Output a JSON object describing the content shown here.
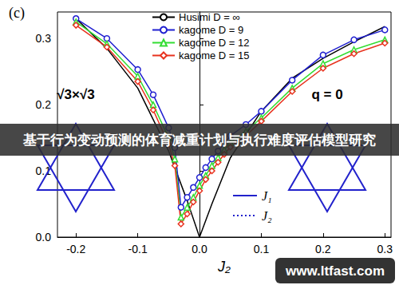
{
  "chart_data": {
    "type": "line",
    "title": "(c)",
    "x_label": "J₂",
    "xlim": [
      -0.23,
      0.31
    ],
    "xticks": [
      -0.2,
      -0.1,
      {
        "value": 0,
        "label": "0.0"
      },
      0.1,
      0.2,
      0.3
    ],
    "ylim": [
      0,
      0.34
    ],
    "yticks": [
      {
        "value": 0,
        "label": "0.0"
      },
      0.1,
      0.2,
      0.3
    ],
    "grid": false,
    "legend": "top",
    "series": [
      {
        "name": "Husimi D = ∞",
        "color": "#000000",
        "marker": "none",
        "line_style": "solid",
        "x": [
          -0.2,
          -0.15,
          -0.1,
          -0.05,
          -0.02,
          0,
          0.02,
          0.05,
          0.1,
          0.15,
          0.2,
          0.25,
          0.3
        ],
        "values": [
          0.33,
          0.285,
          0.225,
          0.13,
          0.055,
          0,
          0.05,
          0.12,
          0.19,
          0.24,
          0.27,
          0.295,
          0.318
        ]
      },
      {
        "name": "kagome D = 9",
        "color": "#1f1fd0",
        "marker": "circle",
        "line_style": "solid",
        "x": [
          -0.2,
          -0.15,
          -0.1,
          -0.075,
          -0.05,
          -0.04,
          -0.03,
          -0.02,
          -0.01,
          0,
          0.01,
          0.02,
          0.03,
          0.04,
          0.05,
          0.075,
          0.1,
          0.15,
          0.2,
          0.25,
          0.3
        ],
        "values": [
          0.33,
          0.3,
          0.253,
          0.215,
          0.165,
          0.135,
          0.045,
          0.06,
          0.075,
          0.09,
          0.105,
          0.118,
          0.13,
          0.142,
          0.153,
          0.17,
          0.19,
          0.237,
          0.275,
          0.298,
          0.313
        ]
      },
      {
        "name": "kagome D = 12",
        "color": "#33dd33",
        "marker": "triangle",
        "line_style": "solid",
        "x": [
          -0.2,
          -0.15,
          -0.1,
          -0.075,
          -0.05,
          -0.04,
          -0.03,
          -0.02,
          -0.01,
          0,
          0.01,
          0.02,
          0.03,
          0.04,
          0.05,
          0.075,
          0.1,
          0.15,
          0.2,
          0.25,
          0.3
        ],
        "values": [
          0.325,
          0.292,
          0.243,
          0.2,
          0.15,
          0.118,
          0.03,
          0.045,
          0.06,
          0.078,
          0.093,
          0.108,
          0.12,
          0.132,
          0.143,
          0.16,
          0.18,
          0.225,
          0.262,
          0.283,
          0.298
        ]
      },
      {
        "name": "kagome D = 15",
        "color": "#e8321e",
        "marker": "diamond",
        "line_style": "solid",
        "x": [
          -0.2,
          -0.15,
          -0.1,
          -0.075,
          -0.05,
          -0.04,
          -0.03,
          -0.02,
          -0.01,
          0,
          0.01,
          0.02,
          0.03,
          0.04,
          0.05,
          0.075,
          0.1,
          0.15,
          0.2,
          0.25,
          0.3
        ],
        "values": [
          0.32,
          0.287,
          0.235,
          0.192,
          0.14,
          0.108,
          0.02,
          0.035,
          0.053,
          0.07,
          0.087,
          0.1,
          0.113,
          0.125,
          0.136,
          0.153,
          0.175,
          0.22,
          0.255,
          0.277,
          0.293
        ]
      }
    ],
    "annotations": [
      {
        "text": "√3×√3"
      },
      {
        "text": "q = 0"
      }
    ],
    "inset_legend": [
      {
        "text": "J₁",
        "line_style": "solid"
      },
      {
        "text": "J₂",
        "line_style": "dotted"
      }
    ],
    "banner": "基于行为变动预测的体育减重计划与执行难度评估模型研究",
    "watermark": "www.ltfast.com"
  }
}
